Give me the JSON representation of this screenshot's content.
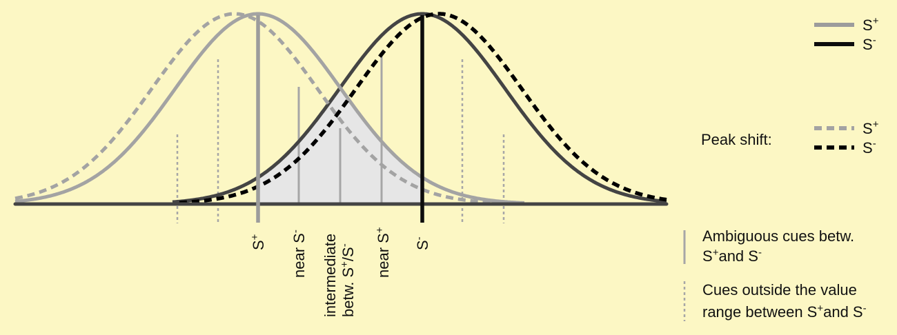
{
  "colors": {
    "background": "#fcf7c4",
    "s_plus": "#9c9c9c",
    "s_minus": "#0d0d0d",
    "s_minus_curve": "#444444",
    "overlap_fill": "#e6e6e6",
    "axis": "#444444"
  },
  "legend": {
    "solid_s_plus": {
      "base": "S",
      "sup": "+"
    },
    "solid_s_minus": {
      "base": "S",
      "sup": "-"
    },
    "peak_shift_label": "Peak shift:",
    "dashed_s_plus": {
      "base": "S",
      "sup": "+"
    },
    "dashed_s_minus": {
      "base": "S",
      "sup": "-"
    }
  },
  "axis_labels": {
    "s_plus": {
      "base": "S",
      "sup": "+"
    },
    "near_s_minus": {
      "base": "near S",
      "sup": "-"
    },
    "intermediate_line1": "intermediate",
    "intermediate_line2": {
      "base": "betw. S",
      "sup1": "+",
      "mid": "/S",
      "sup2": "-"
    },
    "near_s_plus": {
      "base": "near S",
      "sup": "+"
    },
    "s_minus": {
      "base": "S",
      "sup": "-"
    }
  },
  "key": {
    "ambiguous_line1": "Ambiguous cues betw.",
    "ambiguous_line2": {
      "a": "S",
      "sup1": "+",
      "mid": "and S",
      "sup2": "-"
    },
    "outside_line1": "Cues outside the value",
    "outside_line2": {
      "a": "range between S",
      "sup1": "+",
      "mid": "and S",
      "sup2": "-"
    }
  }
}
